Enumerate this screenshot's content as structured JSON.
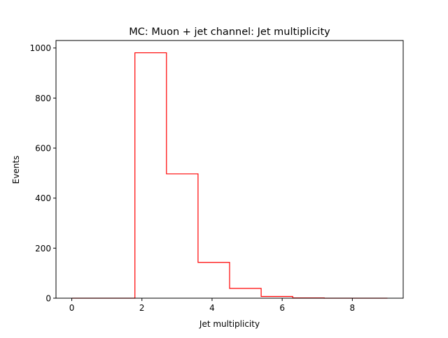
{
  "chart_data": {
    "type": "histogram",
    "title": "MC: Muon + jet channel: Jet multiplicity",
    "xlabel": "Jet multiplicity",
    "ylabel": "Events",
    "xlim": [
      -0.45,
      9.45
    ],
    "ylim": [
      0,
      1030
    ],
    "xticks": [
      0,
      2,
      4,
      6,
      8
    ],
    "yticks": [
      0,
      200,
      400,
      600,
      800,
      1000
    ],
    "bin_edges": [
      0,
      0.9,
      1.8,
      2.7,
      3.6,
      4.5,
      5.4,
      6.3,
      7.2,
      8.1,
      9.0
    ],
    "counts": [
      0,
      0,
      981,
      497,
      143,
      39,
      7,
      1,
      0,
      0
    ],
    "histtype": "step",
    "line_color": "#ff0000",
    "grid": false,
    "legend": false
  }
}
